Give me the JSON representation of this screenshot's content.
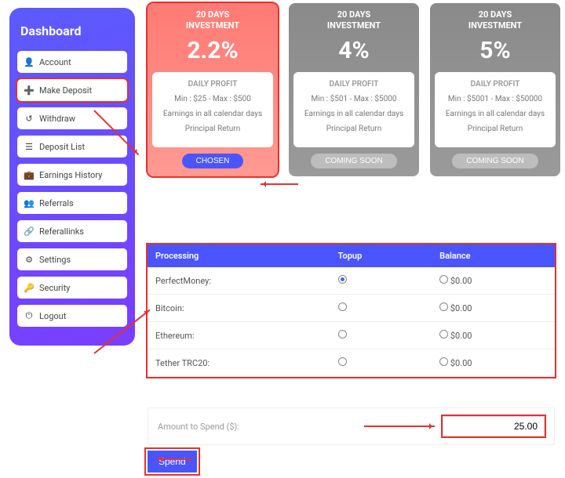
{
  "sidebar": {
    "title": "Dashboard",
    "items": [
      {
        "label": "Account",
        "icon": "person-icon"
      },
      {
        "label": "Make Deposit",
        "icon": "plus-circle-icon",
        "highlight": true
      },
      {
        "label": "Withdraw",
        "icon": "refresh-icon"
      },
      {
        "label": "Deposit List",
        "icon": "list-icon"
      },
      {
        "label": "Earnings History",
        "icon": "briefcase-icon"
      },
      {
        "label": "Referrals",
        "icon": "users-icon"
      },
      {
        "label": "Referallinks",
        "icon": "link-icon"
      },
      {
        "label": "Settings",
        "icon": "gear-icon"
      },
      {
        "label": "Security",
        "icon": "key-icon"
      },
      {
        "label": "Logout",
        "icon": "power-icon"
      }
    ]
  },
  "plans": [
    {
      "head1": "20 DAYS",
      "head2": "INVESTMENT",
      "rate": "2.2%",
      "dp": "DAILY PROFIT",
      "range": "Min : $25 - Max : $500",
      "earn": "Earnings in all calendar days",
      "pr": "Principal Return",
      "btn": "CHOSEN",
      "featured": true,
      "btn_grey": false
    },
    {
      "head1": "20 DAYS",
      "head2": "INVESTMENT",
      "rate": "4%",
      "dp": "DAILY PROFIT",
      "range": "Min : $501 - Max : $5000",
      "earn": "Earnings in all calendar days",
      "pr": "Principal Return",
      "btn": "COMING SOON",
      "featured": false,
      "btn_grey": true
    },
    {
      "head1": "20 DAYS",
      "head2": "INVESTMENT",
      "rate": "5%",
      "dp": "DAILY PROFIT",
      "range": "Min : $5001 - Max : $50000",
      "earn": "Earnings in all calendar days",
      "pr": "Principal Return",
      "btn": "COMING SOON",
      "featured": false,
      "btn_grey": true
    }
  ],
  "table": {
    "headers": {
      "processing": "Processing",
      "topup": "Topup",
      "balance": "Balance"
    },
    "rows": [
      {
        "name": "PerfectMoney:",
        "selected": true,
        "balance": "$0.00"
      },
      {
        "name": "Bitcoin:",
        "selected": false,
        "balance": "$0.00"
      },
      {
        "name": "Ethereum:",
        "selected": false,
        "balance": "$0.00"
      },
      {
        "name": "Tether TRC20:",
        "selected": false,
        "balance": "$0.00"
      }
    ]
  },
  "amount": {
    "label": "Amount to Spend ($):",
    "value": "25.00"
  },
  "spend": {
    "label": "Spend"
  },
  "colors": {
    "accent": "#4a55ff",
    "danger_outline": "#e63030"
  }
}
